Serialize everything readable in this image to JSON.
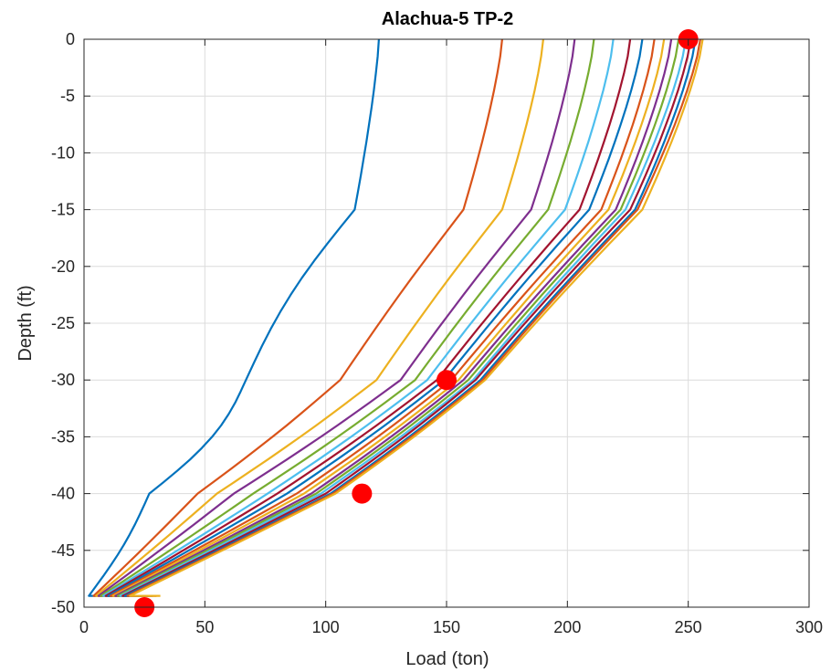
{
  "chart_data": {
    "type": "line",
    "title": "Alachua-5 TP-2",
    "xlabel": "Load (ton)",
    "ylabel": "Depth (ft)",
    "xlim": [
      0,
      300
    ],
    "ylim": [
      -50,
      0
    ],
    "xticks": [
      0,
      50,
      100,
      150,
      200,
      250,
      300
    ],
    "yticks": [
      0,
      -5,
      -10,
      -15,
      -20,
      -25,
      -30,
      -35,
      -40,
      -45,
      -50
    ],
    "grid": true,
    "colors": [
      "#0072BD",
      "#D95319",
      "#EDB120",
      "#7E2F8E",
      "#77AC30",
      "#4DBEEE",
      "#A2142F"
    ],
    "series": [
      {
        "top": 122,
        "d15": 112,
        "d30": 67,
        "d40": 27,
        "bottom": 2
      },
      {
        "top": 173,
        "d15": 157,
        "d30": 106,
        "d40": 47,
        "bottom": 4
      },
      {
        "top": 190,
        "d15": 173,
        "d30": 121,
        "d40": 55,
        "bottom": 5
      },
      {
        "top": 203,
        "d15": 185,
        "d30": 131,
        "d40": 62,
        "bottom": 6
      },
      {
        "top": 211,
        "d15": 192,
        "d30": 137,
        "d40": 70,
        "bottom": 7
      },
      {
        "top": 219,
        "d15": 199,
        "d30": 142,
        "d40": 76,
        "bottom": 8
      },
      {
        "top": 226,
        "d15": 205,
        "d30": 146,
        "d40": 80,
        "bottom": 9
      },
      {
        "top": 231,
        "d15": 209,
        "d30": 149,
        "d40": 84,
        "bottom": 10
      },
      {
        "top": 236,
        "d15": 214,
        "d30": 152,
        "d40": 88,
        "bottom": 11
      },
      {
        "top": 240,
        "d15": 217,
        "d30": 155,
        "d40": 91,
        "bottom": 12
      },
      {
        "top": 243,
        "d15": 220,
        "d30": 157,
        "d40": 94,
        "bottom": 13
      },
      {
        "top": 246,
        "d15": 222,
        "d30": 159,
        "d40": 96,
        "bottom": 14
      },
      {
        "top": 249,
        "d15": 224,
        "d30": 161,
        "d40": 98,
        "bottom": 15
      },
      {
        "top": 251,
        "d15": 226,
        "d30": 162,
        "d40": 100,
        "bottom": 16
      },
      {
        "top": 253,
        "d15": 228,
        "d30": 164,
        "d40": 102,
        "bottom": 17
      },
      {
        "top": 255,
        "d15": 229,
        "d30": 165,
        "d40": 103,
        "bottom": 18
      },
      {
        "top": 256,
        "d15": 231,
        "d30": 166,
        "d40": 104,
        "bottom": 19
      }
    ],
    "markers": [
      {
        "x": 250,
        "y": 0
      },
      {
        "x": 150,
        "y": -30
      },
      {
        "x": 115,
        "y": -40
      },
      {
        "x": 25,
        "y": -50
      }
    ],
    "marker_color": "#FF0000"
  }
}
